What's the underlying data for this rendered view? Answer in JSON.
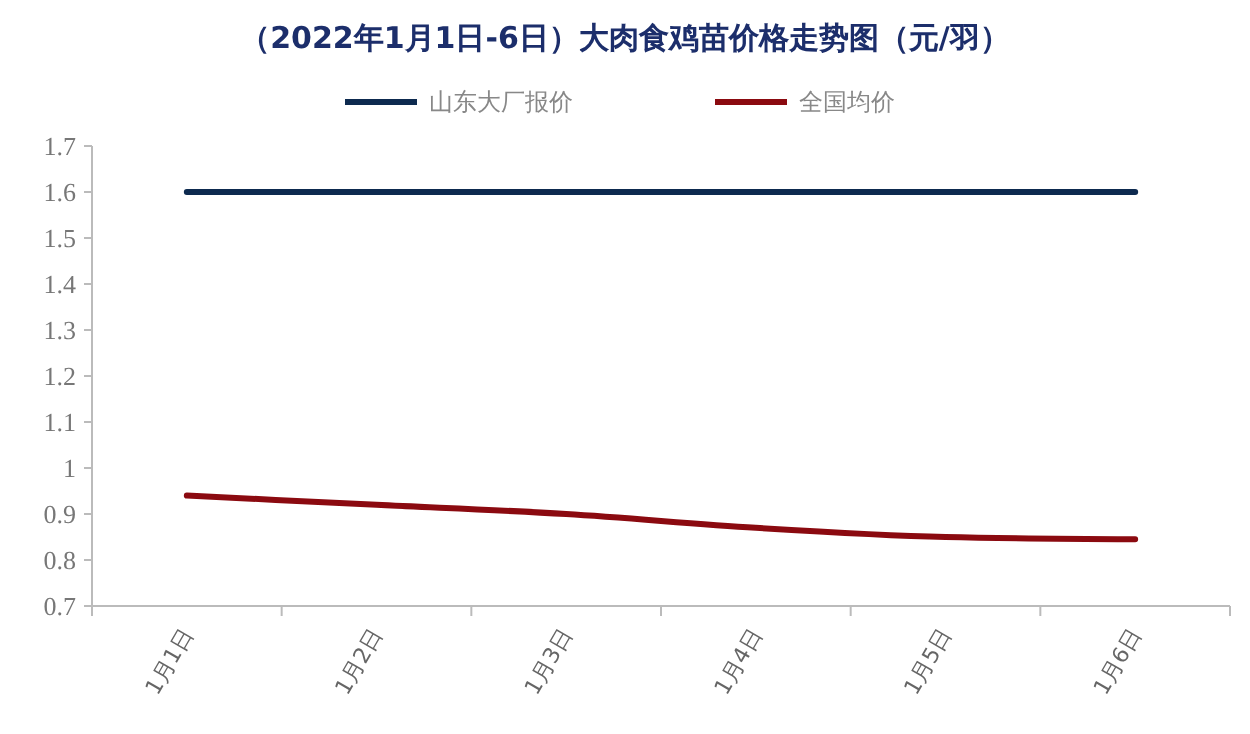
{
  "chart_data": {
    "type": "line",
    "title": "（2022年1月1日-6日）大肉食鸡苗价格走势图（元/羽）",
    "categories": [
      "1月1日",
      "1月2日",
      "1月3日",
      "1月4日",
      "1月5日",
      "1月6日"
    ],
    "series": [
      {
        "name": "山东大厂报价",
        "color": "#0d2a4f",
        "values": [
          1.6,
          1.6,
          1.6,
          1.6,
          1.6,
          1.6
        ]
      },
      {
        "name": "全国均价",
        "color": "#8b0a10",
        "values": [
          0.94,
          0.92,
          0.9,
          0.87,
          0.85,
          0.845
        ]
      }
    ],
    "ylim": [
      0.7,
      1.7
    ],
    "yticks": [
      0.7,
      0.8,
      0.9,
      1,
      1.1,
      1.2,
      1.3,
      1.4,
      1.5,
      1.6,
      1.7
    ],
    "legend": "top",
    "grid": false,
    "marker": "none",
    "line_style": "solid"
  }
}
